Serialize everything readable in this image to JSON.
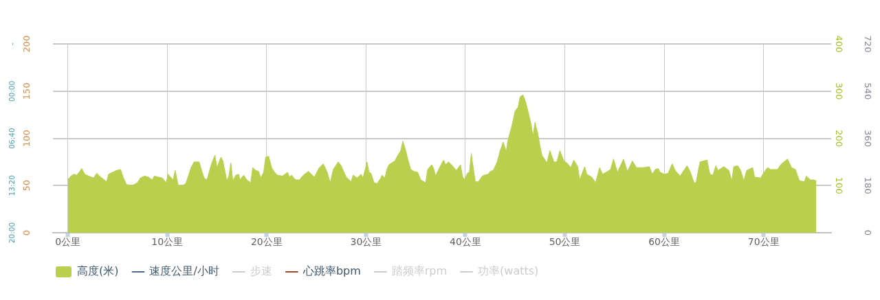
{
  "chart_data": {
    "type": "area",
    "x": [
      0,
      0.3,
      0.6,
      0.9,
      1.2,
      1.4,
      1.7,
      2.1,
      2.6,
      2.9,
      3.3,
      3.9,
      4.1,
      4.5,
      4.9,
      5.3,
      5.6,
      5.9,
      6.5,
      7.0,
      7.3,
      7.7,
      8.1,
      8.5,
      8.7,
      9.5,
      9.9,
      10.1,
      10.4,
      10.6,
      10.8,
      11.1,
      11.6,
      11.9,
      12.4,
      12.7,
      13.2,
      13.7,
      14.0,
      14.4,
      14.6,
      14.8,
      15.0,
      15.4,
      15.6,
      16.0,
      16.2,
      16.4,
      16.6,
      16.9,
      17.2,
      17.3,
      17.7,
      18.0,
      18.4,
      18.6,
      18.9,
      19.2,
      19.4,
      19.7,
      19.9,
      20.2,
      20.5,
      20.8,
      21.1,
      21.6,
      22.1,
      22.3,
      22.5,
      22.9,
      23.3,
      23.7,
      24.2,
      24.8,
      25.3,
      25.7,
      26.1,
      26.4,
      26.7,
      27.2,
      27.5,
      28.0,
      28.5,
      28.7,
      29.1,
      29.5,
      29.7,
      30.1,
      30.3,
      30.5,
      30.8,
      31.1,
      31.5,
      31.6,
      31.9,
      32.1,
      32.3,
      32.9,
      33.2,
      33.5,
      33.7,
      34.0,
      34.2,
      34.5,
      34.8,
      35.2,
      35.5,
      36.0,
      36.2,
      36.6,
      36.8,
      37.0,
      37.4,
      37.8,
      38.0,
      38.3,
      38.6,
      39.0,
      39.1,
      39.5,
      39.7,
      39.9,
      40.2,
      40.4,
      40.6,
      40.7,
      41.0,
      41.3,
      41.7,
      41.9,
      42.3,
      42.5,
      42.8,
      43.2,
      43.5,
      43.8,
      44.1,
      44.3,
      44.6,
      44.8,
      45.0,
      45.3,
      45.5,
      45.8,
      46.1,
      46.4,
      46.6,
      46.8,
      47.0,
      47.3,
      47.5,
      47.7,
      48.2,
      48.5,
      48.9,
      49.2,
      49.5,
      49.9,
      50.2,
      50.6,
      50.9,
      51.3,
      51.5,
      52.0,
      52.2,
      52.7,
      53.1,
      53.5,
      53.8,
      54.3,
      54.6,
      54.9,
      55.3,
      55.9,
      56.3,
      56.8,
      57.2,
      57.9,
      58.5,
      58.8,
      59.1,
      59.4,
      59.6,
      60.0,
      60.4,
      60.8,
      61.1,
      61.6,
      62.3,
      62.6,
      63.0,
      63.2,
      63.6,
      64.3,
      64.6,
      64.9,
      65.2,
      65.4,
      66.0,
      66.5,
      66.8,
      67.0,
      67.4,
      67.7,
      68.0,
      68.3,
      68.9,
      69.1,
      69.7,
      70.1,
      70.4,
      70.7,
      71.4,
      71.8,
      72.4,
      72.8,
      73.2,
      73.6,
      74.1,
      74.3,
      74.7,
      75.0,
      75.3
    ],
    "series": [
      {
        "name": "高度(米)",
        "color": "#bacf4e",
        "values": [
          56,
          60,
          62,
          61,
          65,
          68,
          62,
          60,
          58,
          63,
          59,
          54,
          62,
          64,
          66,
          67,
          58,
          51,
          50,
          53,
          58,
          60,
          59,
          56,
          60,
          58,
          53,
          62,
          58,
          56,
          66,
          50,
          50,
          53,
          69,
          75,
          75,
          58,
          56,
          71,
          77,
          82,
          69,
          80,
          76,
          55,
          60,
          74,
          55,
          61,
          62,
          56,
          61,
          56,
          53,
          69,
          66,
          65,
          58,
          64,
          80,
          81,
          69,
          64,
          61,
          60,
          64,
          59,
          61,
          56,
          56,
          61,
          65,
          59,
          69,
          73,
          64,
          53,
          67,
          75,
          71,
          59,
          54,
          61,
          58,
          62,
          58,
          75,
          64,
          63,
          53,
          52,
          58,
          61,
          58,
          67,
          72,
          76,
          82,
          87,
          97,
          87,
          78,
          67,
          65,
          64,
          56,
          53,
          67,
          72,
          68,
          60,
          69,
          77,
          72,
          75,
          72,
          67,
          66,
          72,
          60,
          56,
          63,
          64,
          84,
          75,
          54,
          54,
          60,
          61,
          62,
          65,
          66,
          75,
          87,
          96,
          86,
          99,
          110,
          119,
          129,
          133,
          144,
          146,
          137,
          124,
          115,
          102,
          117,
          104,
          92,
          82,
          74,
          87,
          75,
          75,
          87,
          76,
          74,
          69,
          77,
          70,
          56,
          70,
          62,
          59,
          53,
          69,
          62,
          65,
          67,
          78,
          64,
          78,
          65,
          76,
          69,
          69,
          70,
          62,
          67,
          68,
          64,
          62,
          63,
          73,
          66,
          60,
          71,
          65,
          53,
          53,
          75,
          77,
          62,
          61,
          71,
          66,
          70,
          66,
          55,
          70,
          71,
          66,
          55,
          66,
          69,
          59,
          58,
          65,
          69,
          67,
          67,
          73,
          78,
          69,
          67,
          55,
          54,
          60,
          56,
          56,
          55
        ]
      },
      {
        "name": "速度公里/小时",
        "type": "line",
        "color": "#4a6b8f",
        "values": [
          null,
          null,
          null,
          null,
          null,
          null,
          null,
          null,
          null,
          null,
          null,
          null,
          null,
          null,
          null,
          null,
          null,
          null,
          null,
          null,
          null,
          null,
          null,
          null,
          null,
          null,
          null,
          null,
          null,
          null,
          null,
          null,
          null,
          null,
          null,
          null,
          null,
          null,
          null,
          null,
          null,
          null,
          null,
          null,
          null,
          null,
          null,
          null,
          null,
          null,
          null,
          null,
          null,
          null,
          null,
          null,
          null,
          null,
          null,
          null,
          null,
          null,
          null,
          null,
          null,
          null,
          null,
          null,
          null,
          null,
          null,
          null,
          null,
          null,
          null,
          null,
          null,
          null,
          null,
          null,
          null,
          null,
          null,
          null,
          null,
          null,
          null,
          null,
          null,
          null,
          null,
          null,
          null,
          null,
          null,
          null,
          null,
          null,
          null,
          null,
          null,
          null,
          null,
          null,
          null,
          null,
          null,
          null,
          null,
          null,
          null,
          null,
          null,
          null,
          null,
          null,
          null,
          null,
          null,
          null,
          null,
          null,
          null,
          null,
          null,
          null,
          null,
          null,
          null,
          null,
          null,
          null,
          null,
          null,
          null,
          null,
          null,
          null,
          null,
          null,
          null,
          null,
          null,
          null,
          null,
          null,
          null,
          null,
          null,
          null,
          null,
          null,
          null,
          null,
          null,
          null,
          null,
          null,
          null,
          null,
          null,
          null,
          null,
          null,
          null,
          null,
          null,
          null,
          null,
          null,
          null,
          null,
          null,
          null,
          null,
          null,
          null,
          null,
          null,
          null,
          null,
          null,
          null,
          null,
          null,
          null,
          null,
          null,
          null,
          null,
          null,
          null,
          null,
          null,
          null,
          null,
          null,
          null,
          null,
          null,
          null,
          null,
          null,
          null,
          null,
          null,
          null,
          null,
          null,
          null,
          null,
          null,
          null,
          null,
          null,
          null,
          null,
          null,
          null,
          null,
          null,
          null,
          null
        ]
      },
      {
        "name": "步速",
        "type": "line",
        "color": "#cccccc",
        "values": [
          null,
          null,
          null,
          null,
          null,
          null,
          null,
          null,
          null,
          null,
          null,
          null,
          null,
          null,
          null,
          null,
          null,
          null,
          null,
          null,
          null,
          null,
          null,
          null,
          null,
          null,
          null,
          null,
          null,
          null,
          null,
          null,
          null,
          null,
          null,
          null,
          null,
          null,
          null,
          null,
          null,
          null,
          null,
          null,
          null,
          null,
          null,
          null,
          null,
          null,
          null,
          null,
          null,
          null,
          null,
          null,
          null,
          null,
          null,
          null,
          null,
          null,
          null,
          null,
          null,
          null,
          null,
          null,
          null,
          null,
          null,
          null,
          null,
          null,
          null,
          null,
          null,
          null,
          null,
          null,
          null,
          null,
          null,
          null,
          null,
          null,
          null,
          null,
          null,
          null,
          null,
          null,
          null,
          null,
          null,
          null,
          null,
          null,
          null,
          null,
          null,
          null,
          null,
          null,
          null,
          null,
          null,
          null,
          null,
          null,
          null,
          null,
          null,
          null,
          null,
          null,
          null,
          null,
          null,
          null,
          null,
          null,
          null,
          null,
          null,
          null,
          null,
          null,
          null,
          null,
          null,
          null,
          null,
          null,
          null,
          null,
          null,
          null,
          null,
          null,
          null,
          null,
          null,
          null,
          null,
          null,
          null,
          null,
          null,
          null,
          null,
          null,
          null,
          null,
          null,
          null,
          null,
          null,
          null,
          null,
          null,
          null,
          null,
          null,
          null,
          null,
          null,
          null,
          null,
          null,
          null,
          null,
          null,
          null,
          null,
          null,
          null,
          null,
          null,
          null,
          null,
          null,
          null,
          null,
          null,
          null,
          null,
          null,
          null,
          null,
          null,
          null,
          null,
          null,
          null,
          null,
          null,
          null,
          null,
          null,
          null,
          null,
          null,
          null,
          null,
          null,
          null,
          null,
          null,
          null,
          null,
          null,
          null,
          null,
          null,
          null,
          null,
          null,
          null,
          null,
          null,
          null,
          null
        ]
      },
      {
        "name": "心跳率bpm",
        "type": "line",
        "color": "#a4432c",
        "values": [
          null,
          null,
          null,
          null,
          null,
          null,
          null,
          null,
          null,
          null,
          null,
          null,
          null,
          null,
          null,
          null,
          null,
          null,
          null,
          null,
          null,
          null,
          null,
          null,
          null,
          null,
          null,
          null,
          null,
          null,
          null,
          null,
          null,
          null,
          null,
          null,
          null,
          null,
          null,
          null,
          null,
          null,
          null,
          null,
          null,
          null,
          null,
          null,
          null,
          null,
          null,
          null,
          null,
          null,
          null,
          null,
          null,
          null,
          null,
          null,
          null,
          null,
          null,
          null,
          null,
          null,
          null,
          null,
          null,
          null,
          null,
          null,
          null,
          null,
          null,
          null,
          null,
          null,
          null,
          null,
          null,
          null,
          null,
          null,
          null,
          null,
          null,
          null,
          null,
          null,
          null,
          null,
          null,
          null,
          null,
          null,
          null,
          null,
          null,
          null,
          null,
          null,
          null,
          null,
          null,
          null,
          null,
          null,
          null,
          null,
          null,
          null,
          null,
          null,
          null,
          null,
          null,
          null,
          null,
          null,
          null,
          null,
          null,
          null,
          null,
          null,
          null,
          null,
          null,
          null,
          null,
          null,
          null,
          null,
          null,
          null,
          null,
          null,
          null,
          null,
          null,
          null,
          null,
          null,
          null,
          null,
          null,
          null,
          null,
          null,
          null,
          null,
          null,
          null,
          null,
          null,
          null,
          null,
          null,
          null,
          null,
          null,
          null,
          null,
          null,
          null,
          null,
          null,
          null,
          null,
          null,
          null,
          null,
          null,
          null,
          null,
          null,
          null,
          null,
          null,
          null,
          null,
          null,
          null,
          null,
          null,
          null,
          null,
          null,
          null,
          null,
          null,
          null,
          null,
          null,
          null,
          null,
          null,
          null,
          null,
          null,
          null,
          null,
          null,
          null,
          null,
          null,
          null,
          null,
          null,
          null,
          null,
          null,
          null,
          null,
          null,
          null,
          null,
          null,
          null,
          null,
          null,
          null
        ]
      },
      {
        "name": "踏频率rpm",
        "type": "line",
        "color": "#cccccc",
        "values": [
          null,
          null,
          null,
          null,
          null,
          null,
          null,
          null,
          null,
          null,
          null,
          null,
          null,
          null,
          null,
          null,
          null,
          null,
          null,
          null,
          null,
          null,
          null,
          null,
          null,
          null,
          null,
          null,
          null,
          null,
          null,
          null,
          null,
          null,
          null,
          null,
          null,
          null,
          null,
          null,
          null,
          null,
          null,
          null,
          null,
          null,
          null,
          null,
          null,
          null,
          null,
          null,
          null,
          null,
          null,
          null,
          null,
          null,
          null,
          null,
          null,
          null,
          null,
          null,
          null,
          null,
          null,
          null,
          null,
          null,
          null,
          null,
          null,
          null,
          null,
          null,
          null,
          null,
          null,
          null,
          null,
          null,
          null,
          null,
          null,
          null,
          null,
          null,
          null,
          null,
          null,
          null,
          null,
          null,
          null,
          null,
          null,
          null,
          null,
          null,
          null,
          null,
          null,
          null,
          null,
          null,
          null,
          null,
          null,
          null,
          null,
          null,
          null,
          null,
          null,
          null,
          null,
          null,
          null,
          null,
          null,
          null,
          null,
          null,
          null,
          null,
          null,
          null,
          null,
          null,
          null,
          null,
          null,
          null,
          null,
          null,
          null,
          null,
          null,
          null,
          null,
          null,
          null,
          null,
          null,
          null,
          null,
          null,
          null,
          null,
          null,
          null,
          null,
          null,
          null,
          null,
          null,
          null,
          null,
          null,
          null,
          null,
          null,
          null,
          null,
          null,
          null,
          null,
          null,
          null,
          null,
          null,
          null,
          null,
          null,
          null,
          null,
          null,
          null,
          null,
          null,
          null,
          null,
          null,
          null,
          null,
          null,
          null,
          null,
          null,
          null,
          null,
          null,
          null,
          null,
          null,
          null,
          null,
          null,
          null,
          null,
          null,
          null,
          null,
          null,
          null,
          null,
          null,
          null,
          null,
          null,
          null,
          null,
          null,
          null,
          null,
          null,
          null,
          null,
          null,
          null,
          null,
          null
        ]
      },
      {
        "name": "功率(watts)",
        "type": "line",
        "color": "#cccccc",
        "values": [
          null,
          null,
          null,
          null,
          null,
          null,
          null,
          null,
          null,
          null,
          null,
          null,
          null,
          null,
          null,
          null,
          null,
          null,
          null,
          null,
          null,
          null,
          null,
          null,
          null,
          null,
          null,
          null,
          null,
          null,
          null,
          null,
          null,
          null,
          null,
          null,
          null,
          null,
          null,
          null,
          null,
          null,
          null,
          null,
          null,
          null,
          null,
          null,
          null,
          null,
          null,
          null,
          null,
          null,
          null,
          null,
          null,
          null,
          null,
          null,
          null,
          null,
          null,
          null,
          null,
          null,
          null,
          null,
          null,
          null,
          null,
          null,
          null,
          null,
          null,
          null,
          null,
          null,
          null,
          null,
          null,
          null,
          null,
          null,
          null,
          null,
          null,
          null,
          null,
          null,
          null,
          null,
          null,
          null,
          null,
          null,
          null,
          null,
          null,
          null,
          null,
          null,
          null,
          null,
          null,
          null,
          null,
          null,
          null,
          null,
          null,
          null,
          null,
          null,
          null,
          null,
          null,
          null,
          null,
          null,
          null,
          null,
          null,
          null,
          null,
          null,
          null,
          null,
          null,
          null,
          null,
          null,
          null,
          null,
          null,
          null,
          null,
          null,
          null,
          null,
          null,
          null,
          null,
          null,
          null,
          null,
          null,
          null,
          null,
          null,
          null,
          null,
          null,
          null,
          null,
          null,
          null,
          null,
          null,
          null,
          null,
          null,
          null,
          null,
          null,
          null,
          null,
          null,
          null,
          null,
          null,
          null,
          null,
          null,
          null,
          null,
          null,
          null,
          null,
          null,
          null,
          null,
          null,
          null,
          null,
          null,
          null,
          null,
          null,
          null,
          null,
          null,
          null,
          null,
          null,
          null,
          null,
          null,
          null,
          null,
          null,
          null,
          null,
          null,
          null,
          null,
          null,
          null,
          null,
          null,
          null,
          null,
          null,
          null,
          null,
          null,
          null,
          null,
          null,
          null,
          null,
          null,
          null
        ]
      }
    ],
    "xlim": [
      -1.5,
      76.8
    ],
    "xticks": [
      {
        "value": 0,
        "label": "0公里"
      },
      {
        "value": 10,
        "label": "10公里"
      },
      {
        "value": 20,
        "label": "20公里"
      },
      {
        "value": 30,
        "label": "30公里"
      },
      {
        "value": 40,
        "label": "40公里"
      },
      {
        "value": 50,
        "label": "50公里"
      },
      {
        "value": 60,
        "label": "60公里"
      },
      {
        "value": 70,
        "label": "70公里"
      }
    ],
    "ylim": [
      0,
      200
    ],
    "yticks": [
      0,
      50,
      100,
      150,
      200
    ],
    "y2lim": [
      1200,
      -400
    ],
    "y2ticks": [
      {
        "value": 1200,
        "label": "20:00"
      },
      {
        "value": 800,
        "label": "13:20"
      },
      {
        "value": 400,
        "label": "06:40"
      },
      {
        "value": 0,
        "label": "00:00"
      },
      {
        "value": -400,
        "label": "-"
      }
    ],
    "y3lim": [
      0,
      400
    ],
    "y3ticks": [
      100,
      200,
      300,
      400
    ],
    "annotations": [
      "720",
      "540",
      "360",
      "180",
      "0"
    ],
    "grid": true,
    "legend": "bottom left"
  }
}
